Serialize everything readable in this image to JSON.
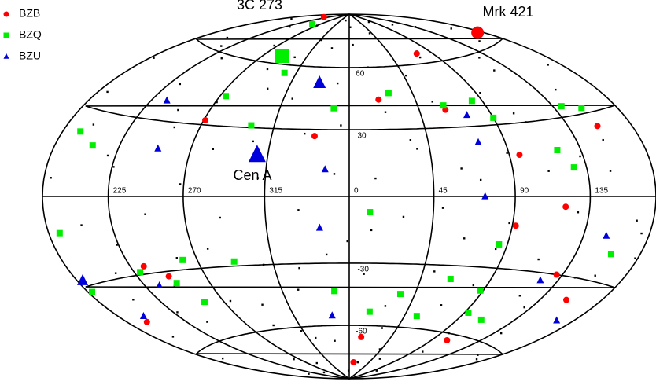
{
  "chart_data": {
    "type": "scatter",
    "projection": "hammer-aitoff",
    "lon_ticks": [
      0,
      45,
      90,
      135,
      225,
      270,
      315
    ],
    "lat_ticks": [
      {
        "value": 60,
        "label": "60"
      },
      {
        "value": 30,
        "label": "30"
      },
      {
        "value": -30,
        "label": "-30"
      },
      {
        "value": -60,
        "label": "-60"
      }
    ],
    "grid": true,
    "legend": "upper left",
    "annotations": [
      "3C 273",
      "Mrk 421",
      "Cen A"
    ],
    "background_sources": {
      "color": "#000000",
      "lon": [
        5,
        12,
        23,
        31,
        38,
        47,
        52,
        61,
        68,
        77,
        84,
        93,
        101,
        109,
        118,
        126,
        133,
        141,
        149,
        158,
        166,
        174,
        183,
        191,
        199,
        207,
        216,
        224,
        233,
        241,
        249,
        258,
        266,
        275,
        283,
        292,
        300,
        309,
        317,
        326,
        334,
        343,
        351,
        359,
        9,
        17,
        27,
        35,
        43,
        56,
        64,
        73,
        81,
        89,
        97,
        105,
        113,
        122,
        130,
        137,
        145,
        153,
        162,
        170,
        178,
        187,
        195,
        203,
        212,
        220,
        228,
        237,
        245,
        254,
        262,
        271,
        279,
        288,
        296,
        305,
        313,
        321,
        330,
        338,
        347,
        355,
        3,
        20,
        41,
        58,
        79,
        99,
        116,
        139,
        156,
        172,
        190,
        210,
        231,
        252,
        270,
        287,
        303,
        323,
        340,
        357,
        14,
        29,
        50,
        71,
        88,
        111,
        128,
        150,
        168,
        185,
        205,
        226,
        247,
        268,
        290,
        311,
        333,
        352
      ],
      "lat": [
        72,
        -15,
        38,
        -61,
        21,
        55,
        -33,
        12,
        -48,
        66,
        -22,
        44,
        -70,
        30,
        -40,
        58,
        15,
        -55,
        40,
        -28,
        70,
        -12,
        50,
        -65,
        25,
        -38,
        62,
        -18,
        45,
        -52,
        35,
        -25,
        68,
        -45,
        20,
        -58,
        48,
        -30,
        74,
        -42,
        28,
        -68,
        52,
        -20,
        -35,
        60,
        -50,
        25,
        -72,
        42,
        -18,
        63,
        -38,
        18,
        -60,
        34,
        -25,
        52,
        -44,
        76,
        -30,
        20,
        -64,
        48,
        -20,
        36,
        -53,
        65,
        -28,
        15,
        -46,
        58,
        -36,
        28,
        -75,
        40,
        -22,
        57,
        -48,
        24,
        -62,
        44,
        -32,
        70,
        -26,
        32,
        82,
        -80,
        78,
        -77,
        84,
        -83,
        80,
        -78,
        63,
        -65,
        79,
        -82,
        77,
        -84,
        81,
        -79,
        64,
        -66,
        86,
        -85,
        8,
        -9,
        -5,
        7,
        -11,
        10,
        -6,
        9,
        -8,
        6,
        -10,
        11,
        -7,
        5,
        -9,
        8,
        -6,
        10
      ]
    },
    "series": [
      {
        "name": "BZB",
        "color": "#ff0000",
        "marker": "circle",
        "lon": [
          175,
          74,
          20,
          62,
          271,
          340,
          96,
          120,
          92,
          234,
          246,
          131,
          154,
          195,
          13,
          10,
          105,
          213,
          155
        ],
        "lat": [
          65,
          65,
          44,
          38,
          32,
          27,
          17,
          -4,
          -12,
          -27,
          -32,
          -30,
          -38,
          -46,
          -66,
          -80,
          -63,
          85,
          25
        ]
      },
      {
        "name": "BZQ",
        "color": "#00ee00",
        "marker": "square",
        "lon": [
          289,
          305,
          274,
          350,
          301,
          253,
          193,
          207,
          11,
          28,
          62,
          83,
          141,
          154,
          90,
          127,
          120,
          188,
          229,
          261,
          248,
          256,
          16,
          55,
          88,
          64,
          85,
          159,
          35,
          109,
          292,
          183,
          350,
          93
        ],
        "lat": [
          64,
          56,
          43,
          40,
          31,
          81,
          22,
          18,
          -7,
          47,
          40,
          41,
          34,
          32,
          33,
          11,
          18,
          -12,
          -29,
          -26,
          -35,
          -44,
          -53,
          -54,
          -40,
          -36,
          -20,
          -20,
          -44,
          -52,
          -28,
          -32,
          -43,
          -50
        ]
      },
      {
        "name": "BZU",
        "color": "#0000dd",
        "marker": "triangle",
        "lon": [
          309,
          337,
          236,
          347,
          74,
          74,
          250,
          184,
          235,
          123,
          150,
          346,
          199,
          167,
          73,
          344
        ],
        "lat": [
          18,
          52,
          38,
          12,
          35,
          23,
          19,
          -28,
          -35,
          -33,
          -14,
          -55,
          -44,
          -45,
          0,
          -14
        ]
      }
    ]
  }
}
